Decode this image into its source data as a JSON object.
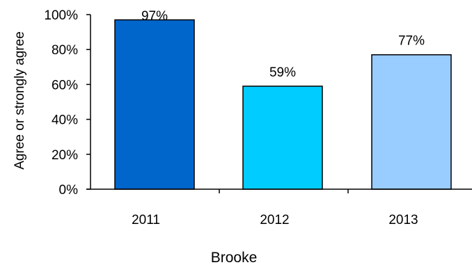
{
  "chart_data": {
    "type": "bar",
    "categories": [
      "2011",
      "2012",
      "2013"
    ],
    "values": [
      97,
      59,
      77
    ],
    "data_labels": [
      "97%",
      "59%",
      "77%"
    ],
    "xlabel": "Brooke",
    "ylabel": "Agree or strongly agree",
    "ylim": [
      0,
      100
    ],
    "yticks": [
      0,
      20,
      40,
      60,
      80,
      100
    ],
    "ytick_labels": [
      "0%",
      "20%",
      "40%",
      "60%",
      "80%",
      "100%"
    ],
    "grid": false,
    "legend": "none",
    "bar_colors": [
      "#0066cc",
      "#00ccff",
      "#99ccff"
    ],
    "bar_edge_color": "#000000",
    "xlabel_color": "#3a76b8"
  }
}
